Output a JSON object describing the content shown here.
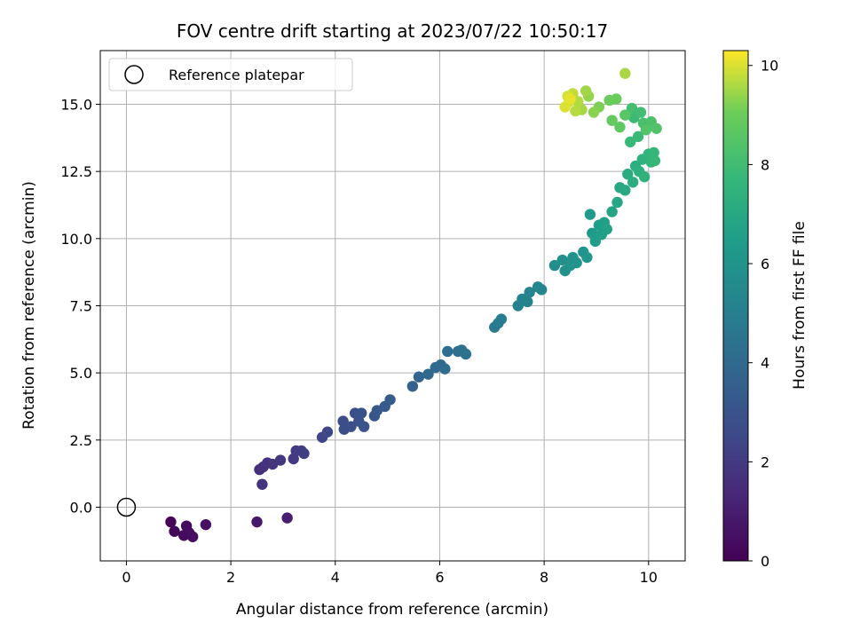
{
  "chart_data": {
    "type": "scatter",
    "title": "FOV centre drift starting at 2023/07/22 10:50:17",
    "xlabel": "Angular distance from reference (arcmin)",
    "ylabel": "Rotation from reference (arcmin)",
    "xlim": [
      -0.5,
      10.7
    ],
    "ylim": [
      -2.0,
      17.0
    ],
    "xticks": [
      "0",
      "2",
      "4",
      "6",
      "8",
      "10"
    ],
    "yticks": [
      "0.0",
      "2.5",
      "5.0",
      "7.5",
      "10.0",
      "12.5",
      "15.0"
    ],
    "grid": true,
    "legend": {
      "position": "top-left",
      "entries": [
        "Reference platepar"
      ]
    },
    "reference_point": {
      "x": 0.0,
      "y": 0.0
    },
    "colorbar": {
      "label": "Hours from first FF file",
      "range": [
        0,
        10.3
      ],
      "ticks": [
        "0",
        "2",
        "4",
        "6",
        "8",
        "10"
      ],
      "colormap": "viridis"
    },
    "points": [
      {
        "x": 0.85,
        "y": -0.55,
        "h": 0.1
      },
      {
        "x": 0.92,
        "y": -0.9,
        "h": 0.2
      },
      {
        "x": 1.1,
        "y": -1.05,
        "h": 0.3
      },
      {
        "x": 1.15,
        "y": -0.7,
        "h": 0.35
      },
      {
        "x": 1.2,
        "y": -0.95,
        "h": 0.4
      },
      {
        "x": 1.27,
        "y": -1.1,
        "h": 0.45
      },
      {
        "x": 1.52,
        "y": -0.65,
        "h": 0.55
      },
      {
        "x": 2.5,
        "y": -0.55,
        "h": 0.8
      },
      {
        "x": 3.08,
        "y": -0.4,
        "h": 1.0
      },
      {
        "x": 2.55,
        "y": 1.4,
        "h": 1.6
      },
      {
        "x": 2.62,
        "y": 1.5,
        "h": 1.65
      },
      {
        "x": 2.6,
        "y": 0.85,
        "h": 1.7
      },
      {
        "x": 2.7,
        "y": 1.65,
        "h": 1.75
      },
      {
        "x": 2.8,
        "y": 1.6,
        "h": 1.8
      },
      {
        "x": 2.95,
        "y": 1.75,
        "h": 1.9
      },
      {
        "x": 3.2,
        "y": 1.8,
        "h": 2.0
      },
      {
        "x": 3.25,
        "y": 2.1,
        "h": 2.05
      },
      {
        "x": 3.35,
        "y": 2.1,
        "h": 2.1
      },
      {
        "x": 3.4,
        "y": 2.0,
        "h": 2.15
      },
      {
        "x": 3.75,
        "y": 2.6,
        "h": 2.4
      },
      {
        "x": 3.85,
        "y": 2.8,
        "h": 2.5
      },
      {
        "x": 4.15,
        "y": 3.2,
        "h": 2.7
      },
      {
        "x": 4.17,
        "y": 2.9,
        "h": 2.75
      },
      {
        "x": 4.3,
        "y": 3.0,
        "h": 2.8
      },
      {
        "x": 4.38,
        "y": 3.5,
        "h": 2.85
      },
      {
        "x": 4.45,
        "y": 3.2,
        "h": 2.9
      },
      {
        "x": 4.5,
        "y": 3.5,
        "h": 2.95
      },
      {
        "x": 4.55,
        "y": 3.0,
        "h": 3.0
      },
      {
        "x": 4.75,
        "y": 3.4,
        "h": 3.1
      },
      {
        "x": 4.8,
        "y": 3.6,
        "h": 3.2
      },
      {
        "x": 4.95,
        "y": 3.75,
        "h": 3.3
      },
      {
        "x": 5.05,
        "y": 4.0,
        "h": 3.4
      },
      {
        "x": 5.48,
        "y": 4.5,
        "h": 3.7
      },
      {
        "x": 5.6,
        "y": 4.85,
        "h": 3.8
      },
      {
        "x": 5.78,
        "y": 4.95,
        "h": 3.9
      },
      {
        "x": 5.92,
        "y": 5.2,
        "h": 4.0
      },
      {
        "x": 6.02,
        "y": 5.3,
        "h": 4.05
      },
      {
        "x": 6.1,
        "y": 5.15,
        "h": 4.1
      },
      {
        "x": 6.15,
        "y": 5.8,
        "h": 4.2
      },
      {
        "x": 6.35,
        "y": 5.8,
        "h": 4.3
      },
      {
        "x": 6.42,
        "y": 5.85,
        "h": 4.35
      },
      {
        "x": 6.5,
        "y": 5.7,
        "h": 4.4
      },
      {
        "x": 7.05,
        "y": 6.7,
        "h": 4.8
      },
      {
        "x": 7.12,
        "y": 6.85,
        "h": 4.85
      },
      {
        "x": 7.18,
        "y": 7.0,
        "h": 4.9
      },
      {
        "x": 7.5,
        "y": 7.5,
        "h": 5.1
      },
      {
        "x": 7.58,
        "y": 7.75,
        "h": 5.15
      },
      {
        "x": 7.68,
        "y": 7.65,
        "h": 5.2
      },
      {
        "x": 7.72,
        "y": 8.0,
        "h": 5.25
      },
      {
        "x": 7.88,
        "y": 8.2,
        "h": 5.35
      },
      {
        "x": 7.95,
        "y": 8.1,
        "h": 5.4
      },
      {
        "x": 8.2,
        "y": 9.0,
        "h": 5.7
      },
      {
        "x": 8.35,
        "y": 9.2,
        "h": 5.8
      },
      {
        "x": 8.4,
        "y": 8.8,
        "h": 5.85
      },
      {
        "x": 8.5,
        "y": 9.0,
        "h": 5.9
      },
      {
        "x": 8.55,
        "y": 9.3,
        "h": 5.95
      },
      {
        "x": 8.62,
        "y": 9.1,
        "h": 6.0
      },
      {
        "x": 8.75,
        "y": 9.5,
        "h": 6.05
      },
      {
        "x": 8.82,
        "y": 9.3,
        "h": 6.1
      },
      {
        "x": 8.88,
        "y": 10.9,
        "h": 6.3
      },
      {
        "x": 8.92,
        "y": 10.2,
        "h": 6.4
      },
      {
        "x": 8.98,
        "y": 9.9,
        "h": 6.45
      },
      {
        "x": 9.05,
        "y": 10.5,
        "h": 6.5
      },
      {
        "x": 9.1,
        "y": 10.15,
        "h": 6.55
      },
      {
        "x": 9.15,
        "y": 10.6,
        "h": 6.6
      },
      {
        "x": 9.2,
        "y": 10.35,
        "h": 6.65
      },
      {
        "x": 9.3,
        "y": 11.0,
        "h": 6.8
      },
      {
        "x": 9.4,
        "y": 11.35,
        "h": 6.9
      },
      {
        "x": 9.45,
        "y": 11.9,
        "h": 7.0
      },
      {
        "x": 9.55,
        "y": 11.8,
        "h": 7.05
      },
      {
        "x": 9.6,
        "y": 12.4,
        "h": 7.15
      },
      {
        "x": 9.7,
        "y": 12.1,
        "h": 7.2
      },
      {
        "x": 9.75,
        "y": 12.7,
        "h": 7.3
      },
      {
        "x": 9.82,
        "y": 12.5,
        "h": 7.35
      },
      {
        "x": 9.88,
        "y": 12.95,
        "h": 7.45
      },
      {
        "x": 9.92,
        "y": 12.3,
        "h": 7.5
      },
      {
        "x": 10.0,
        "y": 13.15,
        "h": 7.6
      },
      {
        "x": 10.05,
        "y": 12.85,
        "h": 7.65
      },
      {
        "x": 10.1,
        "y": 13.2,
        "h": 7.7
      },
      {
        "x": 10.12,
        "y": 12.9,
        "h": 7.75
      },
      {
        "x": 9.65,
        "y": 13.6,
        "h": 7.8
      },
      {
        "x": 9.8,
        "y": 13.8,
        "h": 7.85
      },
      {
        "x": 9.72,
        "y": 14.5,
        "h": 7.9
      },
      {
        "x": 9.85,
        "y": 14.7,
        "h": 8.0
      },
      {
        "x": 9.68,
        "y": 14.85,
        "h": 8.1
      },
      {
        "x": 9.9,
        "y": 14.3,
        "h": 8.2
      },
      {
        "x": 10.05,
        "y": 14.35,
        "h": 8.3
      },
      {
        "x": 10.15,
        "y": 14.1,
        "h": 8.4
      },
      {
        "x": 9.95,
        "y": 14.05,
        "h": 8.45
      },
      {
        "x": 9.55,
        "y": 14.6,
        "h": 8.6
      },
      {
        "x": 9.45,
        "y": 14.15,
        "h": 8.75
      },
      {
        "x": 9.3,
        "y": 14.4,
        "h": 8.85
      },
      {
        "x": 9.38,
        "y": 15.2,
        "h": 8.95
      },
      {
        "x": 9.25,
        "y": 15.15,
        "h": 9.0
      },
      {
        "x": 9.05,
        "y": 14.9,
        "h": 9.2
      },
      {
        "x": 8.95,
        "y": 14.7,
        "h": 9.3
      },
      {
        "x": 8.85,
        "y": 15.3,
        "h": 9.4
      },
      {
        "x": 8.8,
        "y": 15.5,
        "h": 9.5
      },
      {
        "x": 8.72,
        "y": 14.8,
        "h": 9.55
      },
      {
        "x": 8.65,
        "y": 15.1,
        "h": 9.65
      },
      {
        "x": 8.6,
        "y": 14.75,
        "h": 9.7
      },
      {
        "x": 8.55,
        "y": 15.4,
        "h": 9.8
      },
      {
        "x": 8.48,
        "y": 15.1,
        "h": 9.9
      },
      {
        "x": 8.45,
        "y": 15.3,
        "h": 9.95
      },
      {
        "x": 8.4,
        "y": 14.9,
        "h": 10.0
      },
      {
        "x": 8.5,
        "y": 15.2,
        "h": 10.1
      },
      {
        "x": 9.55,
        "y": 16.15,
        "h": 9.6
      }
    ]
  }
}
